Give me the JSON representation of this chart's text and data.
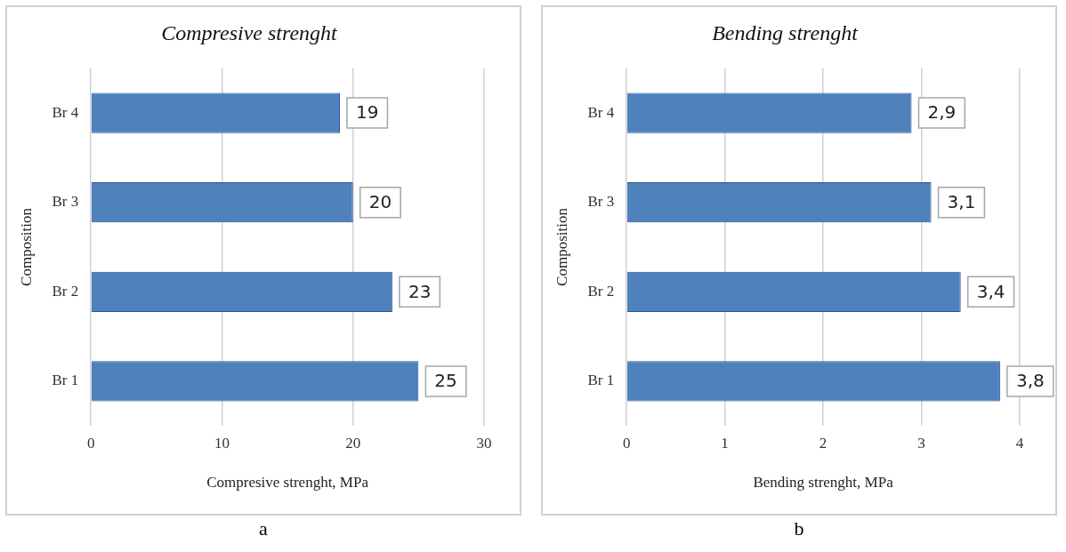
{
  "chart_data": [
    {
      "type": "bar",
      "orientation": "horizontal",
      "title": "Compresive strenght",
      "xlabel": "Compresive strenght, MPa",
      "ylabel": "Composition",
      "categories": [
        "Br 4",
        "Br 3",
        "Br 2",
        "Br 1"
      ],
      "values": [
        19,
        20,
        23,
        25
      ],
      "color": "#4f81bd",
      "xlim": [
        0,
        30
      ],
      "xticks": [
        0,
        10,
        20,
        30
      ],
      "grid": "x",
      "legend": false,
      "data_labels": true,
      "annotations": [
        "a"
      ]
    },
    {
      "type": "bar",
      "orientation": "horizontal",
      "title": "Bending strenght",
      "xlabel": "Bending strenght, MPa",
      "ylabel": "Composition",
      "categories": [
        "Br 4",
        "Br 3",
        "Br 2",
        "Br 1"
      ],
      "values": [
        2.9,
        3.1,
        3.4,
        3.8
      ],
      "value_labels": [
        "2,9",
        "3,1",
        "3,4",
        "3,8"
      ],
      "color": "#4f81bd",
      "xlim": [
        0,
        4
      ],
      "xticks": [
        0,
        1,
        2,
        3,
        4
      ],
      "grid": "x",
      "legend": false,
      "annotations": [
        "b"
      ]
    }
  ]
}
